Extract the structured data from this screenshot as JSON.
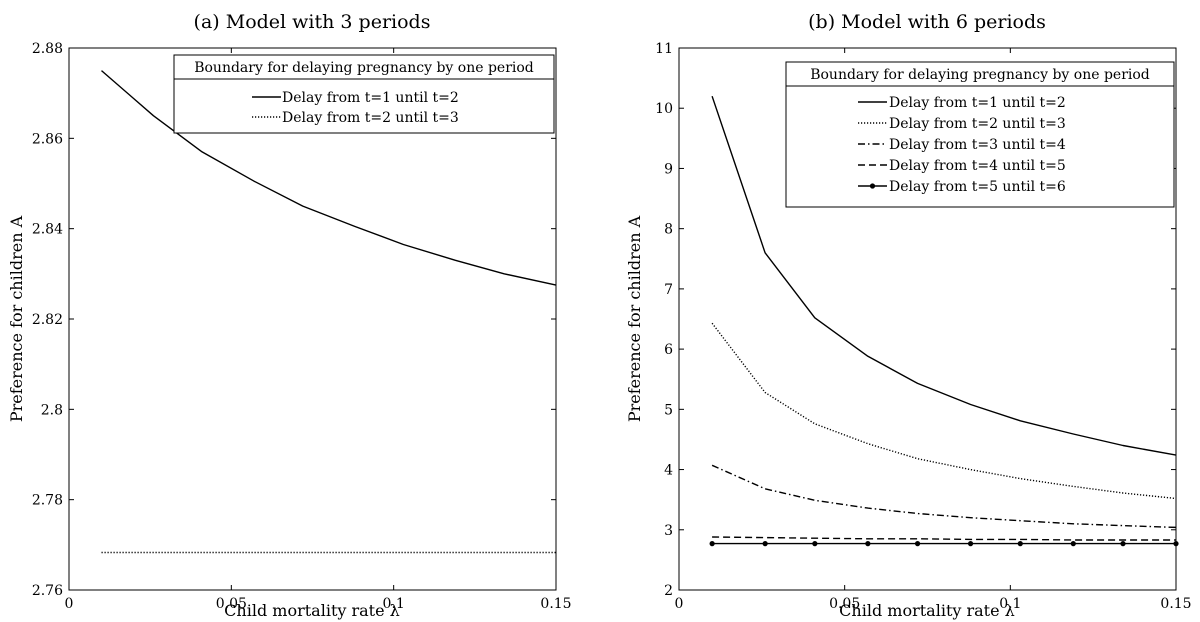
{
  "charts": [
    {
      "title": "(a) Model with 3 periods",
      "xlabel": "Child mortality rate λ",
      "ylabel": "Preference for children A",
      "xticks": [
        "0",
        "0.05",
        "0.1",
        "0.15"
      ],
      "yticks": [
        "2.76",
        "2.78",
        "2.8",
        "2.82",
        "2.84",
        "2.86",
        "2.88"
      ],
      "legend_title": "Boundary for delaying pregnancy by one period",
      "legend_items": [
        "Delay from t=1 until t=2",
        "Delay from t=2 until t=3"
      ]
    },
    {
      "title": "(b) Model with 6 periods",
      "xlabel": "Child mortality rate λ",
      "ylabel": "Preference for children A",
      "xticks": [
        "0",
        "0.05",
        "0.1",
        "0.15"
      ],
      "yticks": [
        "2",
        "3",
        "4",
        "5",
        "6",
        "7",
        "8",
        "9",
        "10",
        "11"
      ],
      "legend_title": "Boundary for delaying pregnancy by one period",
      "legend_items": [
        "Delay from t=1 until t=2",
        "Delay from t=2 until t=3",
        "Delay from t=3 until t=4",
        "Delay from t=4 until t=5",
        "Delay from t=5 until t=6"
      ]
    }
  ],
  "chart_data": [
    {
      "type": "line",
      "title": "(a) Model with 3 periods",
      "xlabel": "Child mortality rate λ",
      "ylabel": "Preference for children A",
      "xlim": [
        0,
        0.15
      ],
      "ylim": [
        2.76,
        2.88
      ],
      "grid": false,
      "legend": "top-right",
      "series": [
        {
          "name": "Delay from t=1 until t=2",
          "style": "solid",
          "x": [
            0.01,
            0.026,
            0.041,
            0.057,
            0.072,
            0.088,
            0.103,
            0.119,
            0.134,
            0.15
          ],
          "y": [
            2.875,
            2.865,
            2.857,
            2.8505,
            2.845,
            2.8405,
            2.8365,
            2.833,
            2.83,
            2.8275
          ]
        },
        {
          "name": "Delay from t=2 until t=3",
          "style": "dotted",
          "x": [
            0.01,
            0.15
          ],
          "y": [
            2.7683,
            2.7683
          ]
        }
      ]
    },
    {
      "type": "line",
      "title": "(b) Model with 6 periods",
      "xlabel": "Child mortality rate λ",
      "ylabel": "Preference for children A",
      "xlim": [
        0,
        0.15
      ],
      "ylim": [
        2,
        11
      ],
      "grid": false,
      "legend": "top-right",
      "series": [
        {
          "name": "Delay from t=1 until t=2",
          "style": "solid",
          "x": [
            0.01,
            0.026,
            0.041,
            0.057,
            0.072,
            0.088,
            0.103,
            0.119,
            0.134,
            0.15
          ],
          "y": [
            10.2,
            7.6,
            6.52,
            5.88,
            5.43,
            5.08,
            4.81,
            4.59,
            4.4,
            4.24
          ]
        },
        {
          "name": "Delay from t=2 until t=3",
          "style": "dotted",
          "x": [
            0.01,
            0.026,
            0.041,
            0.057,
            0.072,
            0.088,
            0.103,
            0.119,
            0.134,
            0.15
          ],
          "y": [
            6.43,
            5.28,
            4.76,
            4.43,
            4.18,
            4.0,
            3.85,
            3.72,
            3.61,
            3.52
          ]
        },
        {
          "name": "Delay from t=3 until t=4",
          "style": "dashdot",
          "x": [
            0.01,
            0.026,
            0.041,
            0.057,
            0.072,
            0.088,
            0.103,
            0.119,
            0.134,
            0.15
          ],
          "y": [
            4.07,
            3.68,
            3.49,
            3.36,
            3.27,
            3.2,
            3.15,
            3.1,
            3.07,
            3.04
          ]
        },
        {
          "name": "Delay from t=4 until t=5",
          "style": "dashed",
          "x": [
            0.01,
            0.026,
            0.041,
            0.057,
            0.072,
            0.088,
            0.103,
            0.119,
            0.134,
            0.15
          ],
          "y": [
            2.88,
            2.87,
            2.86,
            2.85,
            2.85,
            2.84,
            2.84,
            2.83,
            2.83,
            2.83
          ]
        },
        {
          "name": "Delay from t=5 until t=6",
          "style": "solid-marker",
          "x": [
            0.01,
            0.026,
            0.041,
            0.057,
            0.072,
            0.088,
            0.103,
            0.119,
            0.134,
            0.15
          ],
          "y": [
            2.77,
            2.77,
            2.77,
            2.77,
            2.77,
            2.77,
            2.77,
            2.77,
            2.77,
            2.77
          ]
        }
      ]
    }
  ]
}
